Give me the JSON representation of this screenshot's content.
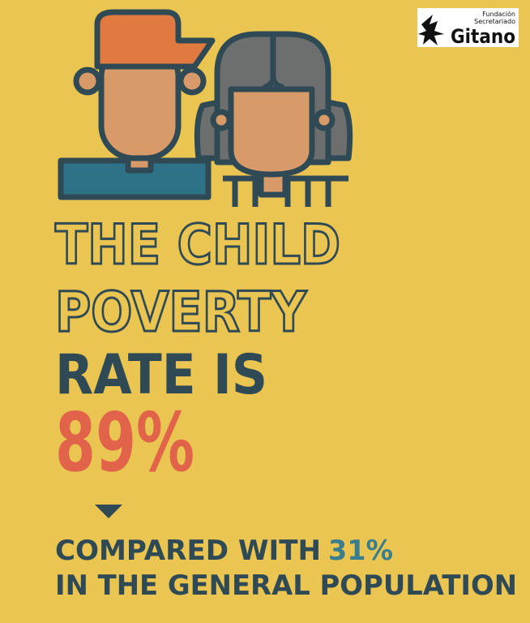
{
  "logo": {
    "line1": "Fundación",
    "line2": "Secretariado",
    "name": "Gitano"
  },
  "headline": {
    "line1": "THE CHILD",
    "line2": "POVERTY",
    "line3": "RATE IS",
    "figure": "89%"
  },
  "comparison": {
    "prefix": "COMPARED WITH",
    "figure": "31%",
    "line2": "IN THE GENERAL POPULATION"
  }
}
